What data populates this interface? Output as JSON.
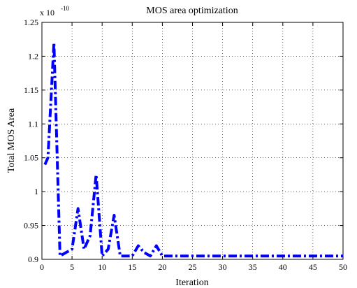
{
  "chart_data": {
    "type": "line",
    "title": "MOS area optimization",
    "xlabel": "Iteration",
    "ylabel": "Total MOS Area",
    "exponent_label": "x 10",
    "exponent_power": "-10",
    "xlim": [
      0,
      50
    ],
    "ylim": [
      0.9,
      1.25
    ],
    "xticks": [
      "0",
      "5",
      "10",
      "15",
      "20",
      "25",
      "30",
      "35",
      "40",
      "45",
      "50"
    ],
    "yticks": [
      "0.9",
      "0.95",
      "1",
      "1.05",
      "1.1",
      "1.15",
      "1.2",
      "1.25"
    ],
    "grid": true,
    "series": [
      {
        "line_style": "dash-dot",
        "color": "#0000ff",
        "x": [
          0.5,
          1,
          2,
          3,
          4,
          5,
          6,
          7,
          8,
          9,
          10,
          11,
          12,
          13,
          14,
          15,
          16,
          17,
          18,
          19,
          20,
          21,
          22,
          23,
          24,
          25,
          26,
          27,
          28,
          29,
          30,
          31,
          32,
          33,
          34,
          35,
          36,
          37,
          38,
          39,
          40,
          41,
          42,
          43,
          44,
          45,
          46,
          47,
          48,
          49,
          50
        ],
        "y": [
          1.04,
          1.05,
          1.22,
          0.905,
          0.91,
          0.915,
          0.975,
          0.915,
          0.935,
          1.025,
          0.905,
          0.915,
          0.965,
          0.905,
          0.905,
          0.905,
          0.92,
          0.91,
          0.905,
          0.92,
          0.905,
          0.905,
          0.905,
          0.905,
          0.905,
          0.905,
          0.905,
          0.905,
          0.905,
          0.905,
          0.905,
          0.905,
          0.905,
          0.905,
          0.905,
          0.905,
          0.905,
          0.905,
          0.905,
          0.905,
          0.905,
          0.905,
          0.905,
          0.905,
          0.905,
          0.905,
          0.905,
          0.905,
          0.905,
          0.905,
          0.905
        ]
      }
    ]
  }
}
